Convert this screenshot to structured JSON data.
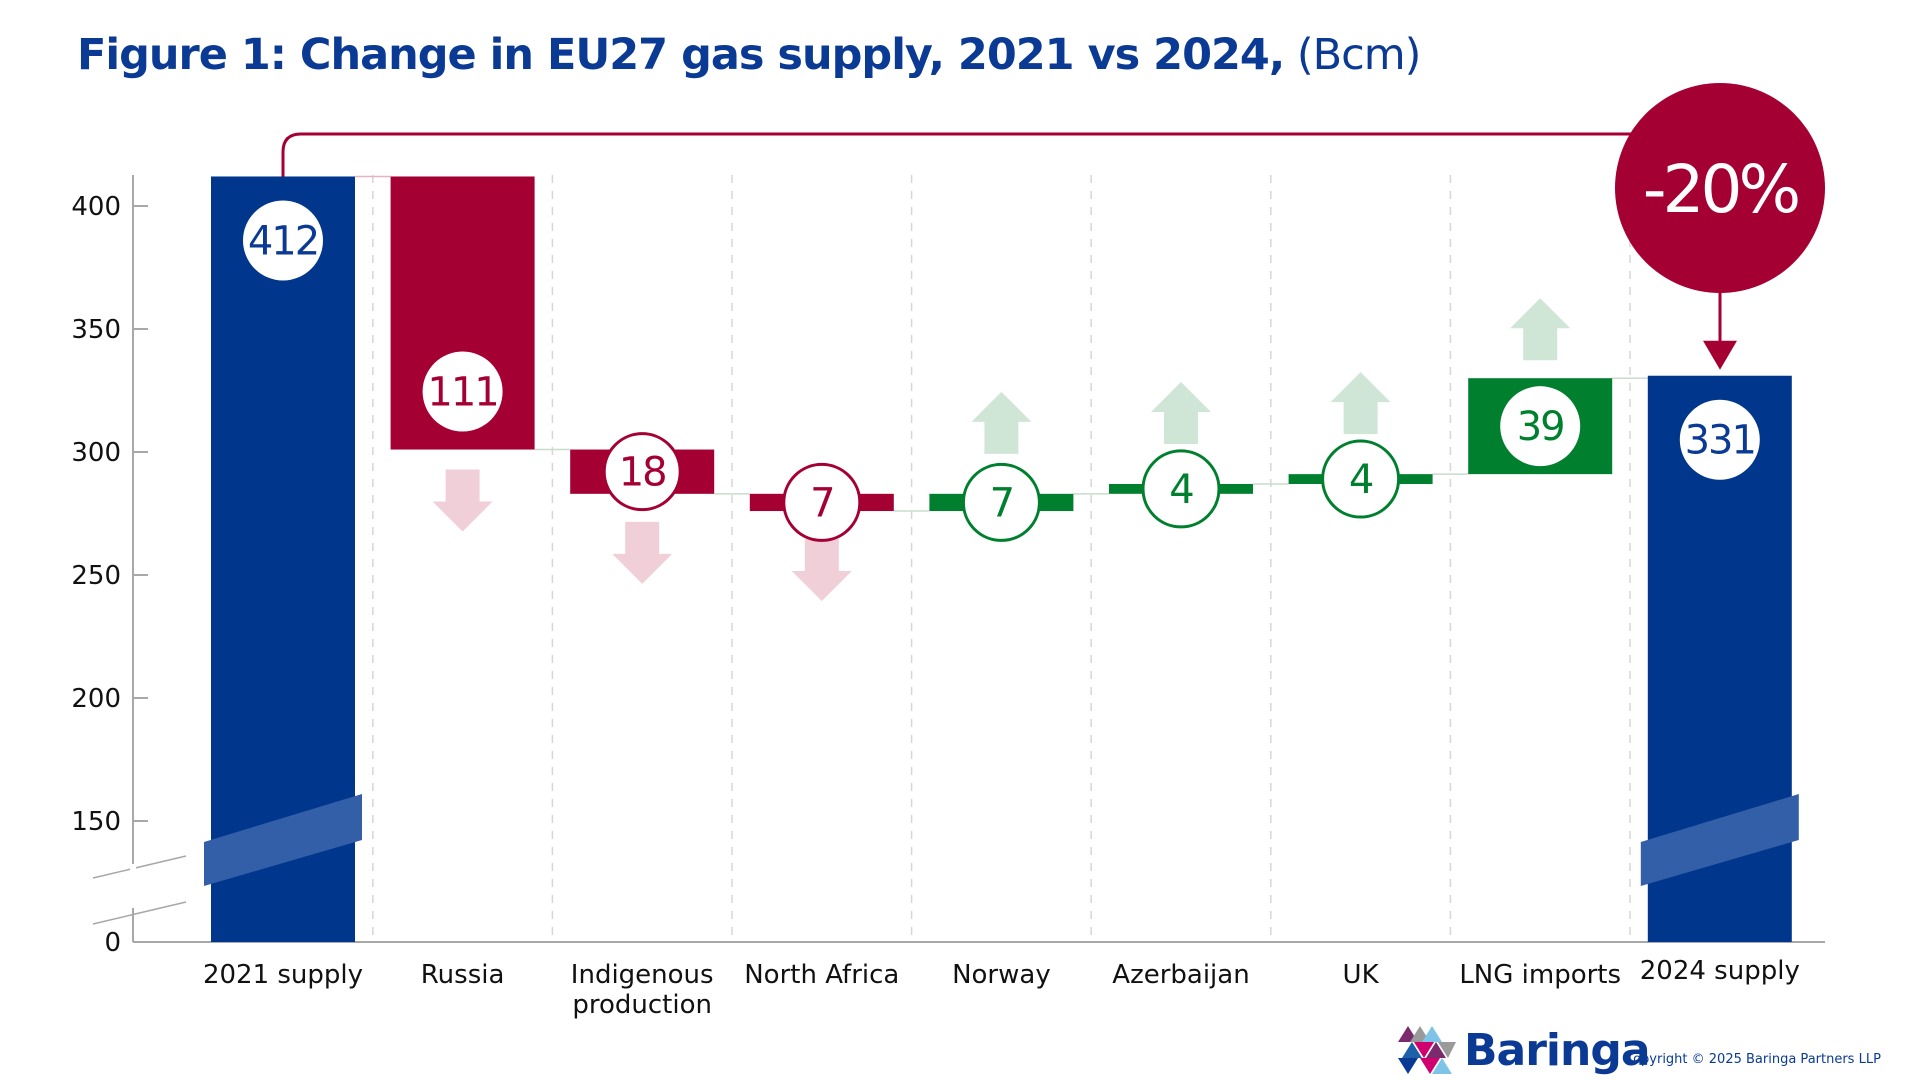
{
  "chart_data": {
    "type": "waterfall",
    "title": "Figure 1: Change in EU27 gas supply, 2021 vs 2024,",
    "title_unit": "(Bcm)",
    "categories": [
      "2021 supply",
      "Russia",
      "Indigenous production",
      "North Africa",
      "Norway",
      "Azerbaijan",
      "UK",
      "LNG imports",
      "2024 supply"
    ],
    "category_lines": [
      [
        "2021 supply"
      ],
      [
        "Russia"
      ],
      [
        "Indigenous",
        "production"
      ],
      [
        "North Africa"
      ],
      [
        "Norway"
      ],
      [
        "Azerbaijan"
      ],
      [
        "UK"
      ],
      [
        "LNG imports"
      ],
      [
        "2024 supply"
      ]
    ],
    "values": [
      412,
      -111,
      -18,
      -7,
      7,
      4,
      4,
      39,
      331
    ],
    "labels": [
      "412",
      "111",
      "18",
      "7",
      "7",
      "4",
      "4",
      "39",
      "331"
    ],
    "kinds": [
      "total",
      "decrease",
      "decrease",
      "decrease",
      "increase",
      "increase",
      "increase",
      "increase",
      "total"
    ],
    "yticks": [
      0,
      150,
      200,
      250,
      300,
      350,
      400
    ],
    "y_axis_break": [
      0,
      150
    ],
    "ylim": [
      0,
      412
    ],
    "annotation": "-20%",
    "colors": {
      "total": "#00368c",
      "decrease": "#a50034",
      "increase": "#00802f",
      "decrease_arrow": "#f0cfd8",
      "increase_arrow": "#cfe6d7",
      "title": "#0a3a94"
    }
  },
  "footer": {
    "logo_text": "Baringa",
    "copyright": "Copyright © 2025 Baringa Partners LLP"
  }
}
